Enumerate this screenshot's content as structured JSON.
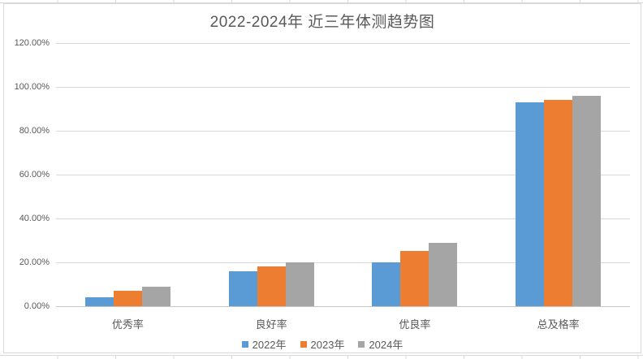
{
  "chart_data": {
    "type": "bar",
    "title": "2022-2024年 近三年体测趋势图",
    "categories": [
      "优秀率",
      "良好率",
      "优良率",
      "总及格率"
    ],
    "series": [
      {
        "name": "2022年",
        "color": "#5B9BD5",
        "values": [
          4,
          16,
          20,
          93
        ]
      },
      {
        "name": "2023年",
        "color": "#ED7D31",
        "values": [
          7,
          18,
          25,
          94
        ]
      },
      {
        "name": "2024年",
        "color": "#A5A5A5",
        "values": [
          9,
          20,
          29,
          96
        ]
      }
    ],
    "value_unit": "%",
    "ylabel": "",
    "xlabel": "",
    "ylim": [
      0,
      120
    ],
    "y_step": 20,
    "y_tick_labels": [
      "0.00%",
      "20.00%",
      "40.00%",
      "60.00%",
      "80.00%",
      "100.00%",
      "120.00%"
    ],
    "grid": true,
    "legend_position": "bottom"
  },
  "colors": {
    "title_text": "#595959",
    "axis_text": "#595959",
    "gridline": "#d9d9d9",
    "chart_border": "#d9d9d9",
    "background": "#ffffff"
  }
}
